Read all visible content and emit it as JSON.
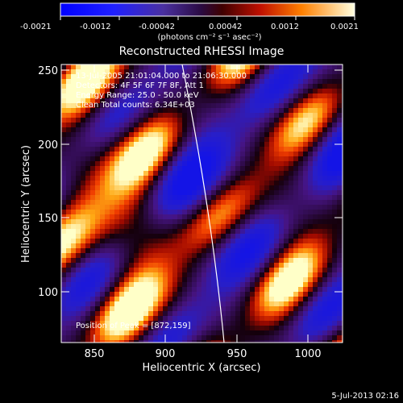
{
  "colorbar": {
    "ticks": [
      "-0.0021",
      "-0.0012",
      "-0.00042",
      "0.00042",
      "0.0012",
      "0.0021"
    ],
    "unit_label": "(photons cm⁻² s⁻¹ asec⁻²)"
  },
  "title": "Reconstructed RHESSI Image",
  "info": {
    "time_range": "13-Jul-2005 21:01:04.000 to 21:06:30.000",
    "detectors": "Detectors: 4F 5F 6F 7F 8F, Att 1",
    "energy": "Energy Range: 25.0 - 50.0 keV",
    "clean": "Clean     Total counts: 6.34E+03",
    "peak": "Position of Peak = [872,159]"
  },
  "x_axis": {
    "label": "Heliocentric X (arcsec)",
    "ticks": [
      "850",
      "900",
      "950",
      "1000"
    ]
  },
  "y_axis": {
    "label": "Heliocentric Y (arcsec)",
    "ticks": [
      "100",
      "150",
      "200",
      "250"
    ]
  },
  "footer": {
    "timestamp": "5-Jul-2013 02:16"
  },
  "colors": {
    "low": "#1a1aff",
    "mid": "#4a0a66",
    "high": "#ffff40"
  }
}
